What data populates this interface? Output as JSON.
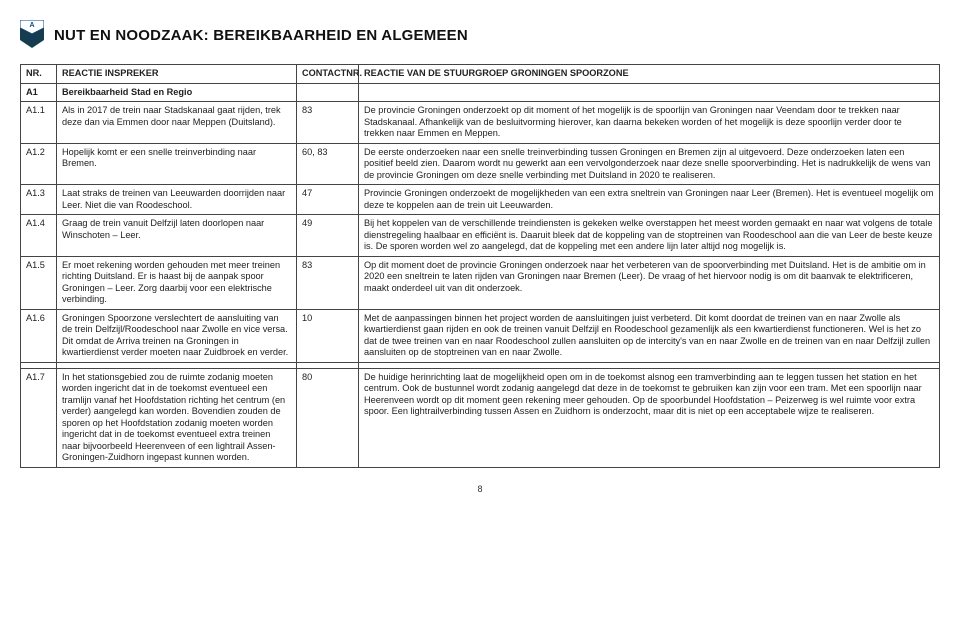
{
  "header": {
    "marker_letter": "A",
    "title": "NUT EN NOODZAAK: BEREIKBAARHEID EN ALGEMEEN",
    "logo_colors": {
      "top": "#0b4a8a",
      "bottom": "#163c4f"
    }
  },
  "table": {
    "columns": [
      "NR.",
      "REACTIE INSPREKER",
      "CONTACTNR.",
      "REACTIE VAN DE STUURGROEP GRONINGEN SPOORZONE"
    ],
    "section": {
      "nr": "A1",
      "title": "Bereikbaarheid Stad en Regio"
    },
    "rows": [
      {
        "nr": "A1.1",
        "reactie": "Als in 2017 de trein naar Stadskanaal gaat rijden, trek deze dan via Emmen door naar Meppen (Duitsland).",
        "contact": "83",
        "stuur": "De provincie Groningen onderzoekt op dit moment of het mogelijk is de spoorlijn van Groningen naar Veendam door te trekken naar Stadskanaal. Afhankelijk van de besluitvorming hierover, kan daarna bekeken worden of het mogelijk is deze spoorlijn verder door te trekken naar Emmen en Meppen."
      },
      {
        "nr": "A1.2",
        "reactie": "Hopelijk komt er een snelle treinverbinding naar Bremen.",
        "contact": "60, 83",
        "stuur": "De eerste onderzoeken naar een snelle treinverbinding tussen Groningen en Bremen zijn al uitgevoerd. Deze onderzoeken laten een positief beeld zien. Daarom wordt nu gewerkt aan een vervolgonderzoek naar deze snelle spoorverbinding. Het is nadrukkelijk de wens van de provincie Groningen om deze snelle verbinding met Duitsland in 2020 te realiseren."
      },
      {
        "nr": "A1.3",
        "reactie": "Laat straks de treinen van Leeuwarden doorrijden naar Leer. Niet die van Roodeschool.",
        "contact": "47",
        "stuur": "Provincie Groningen onderzoekt de mogelijkheden van een extra sneltrein van Groningen naar Leer (Bremen). Het is eventueel mogelijk om deze te koppelen aan de trein uit Leeuwarden."
      },
      {
        "nr": "A1.4",
        "reactie": "Graag de trein vanuit Delfzijl laten doorlopen naar Winschoten – Leer.",
        "contact": "49",
        "stuur": "Bij het koppelen van de verschillende treindiensten is gekeken welke overstappen het meest worden gemaakt en naar wat volgens de totale dienstregeling haalbaar en efficiënt is. Daaruit bleek dat de koppeling van de stoptreinen van Roodeschool aan die van Leer de beste keuze is. De sporen worden wel zo aangelegd, dat de koppeling met een andere lijn later altijd nog mogelijk is."
      },
      {
        "nr": "A1.5",
        "reactie": "Er moet rekening worden gehouden met meer treinen richting Duitsland. Er is haast bij de aanpak spoor Groningen – Leer. Zorg daarbij voor een elektrische verbinding.",
        "contact": "83",
        "stuur": "Op dit moment doet de provincie Groningen onderzoek naar het verbeteren van de spoorverbinding met Duitsland. Het is de ambitie om in 2020 een sneltrein te laten rijden van Groningen naar Bremen (Leer). De vraag of het hiervoor nodig is om dit baanvak te elektrificeren, maakt onderdeel uit van dit onderzoek."
      },
      {
        "nr": "A1.6",
        "reactie": "Groningen Spoorzone verslechtert de aansluiting van de trein Delfzijl/Roodeschool naar Zwolle en vice versa. Dit omdat de Arriva treinen na Groningen in kwartierdienst verder moeten naar Zuidbroek en verder.",
        "contact": "10",
        "stuur": "Met de aanpassingen binnen het project worden de aansluitingen juist verbeterd. Dit komt doordat de treinen van en naar Zwolle als kwartierdienst gaan rijden en ook de treinen vanuit Delfzijl en Roodeschool gezamenlijk als een kwartierdienst functioneren. Wel is het zo dat de twee treinen van en naar Roodeschool zullen aansluiten op de intercity's van en naar Zwolle en de treinen van en naar Delfzijl zullen aansluiten op de stoptreinen van en naar Zwolle."
      },
      {
        "nr": "A1.7",
        "reactie": "In het stationsgebied zou de ruimte zodanig moeten worden ingericht dat in de toekomst eventueel een tramlijn vanaf het Hoofdstation richting het centrum (en verder) aangelegd kan worden. Bovendien zouden de sporen op het Hoofdstation zodanig moeten worden ingericht dat in de toekomst eventueel extra treinen naar bijvoorbeeld Heerenveen of een lightrail Assen-Groningen-Zuidhorn ingepast kunnen worden.",
        "contact": "80",
        "stuur": "De huidige herinrichting laat de mogelijkheid open om in de toekomst alsnog een tramverbinding aan te leggen tussen het station en het centrum. Ook de bustunnel wordt zodanig aangelegd dat deze in de toekomst te gebruiken kan zijn voor een tram. Met een spoorlijn naar Heerenveen wordt op dit moment geen rekening meer gehouden. Op de spoorbundel Hoofdstation – Peizerweg is wel ruimte voor extra spoor. Een lightrailverbinding tussen Assen en Zuidhorn is onderzocht, maar dit is niet op een acceptabele wijze te realiseren."
      }
    ]
  },
  "page_number": "8"
}
